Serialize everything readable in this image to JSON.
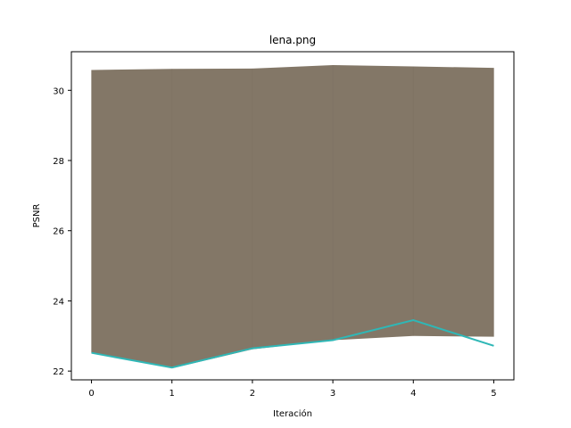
{
  "chart_data": {
    "type": "line",
    "title": "lena.png",
    "xlabel": "Iteración",
    "ylabel": "PSNR",
    "x": [
      0,
      1,
      2,
      3,
      4,
      5
    ],
    "xlim": [
      -0.25,
      5.25
    ],
    "ylim": [
      21.75,
      31.1
    ],
    "xticks": [
      "0",
      "1",
      "2",
      "3",
      "4",
      "5"
    ],
    "yticks": [
      "22",
      "24",
      "26",
      "28",
      "30"
    ],
    "ytick_values": [
      22,
      24,
      26,
      28,
      30
    ],
    "grid": false,
    "band": {
      "upper": [
        30.58,
        30.61,
        30.62,
        30.72,
        30.68,
        30.64
      ],
      "lower": [
        22.52,
        22.08,
        22.62,
        22.88,
        23.0,
        22.98
      ],
      "color": "#837767"
    },
    "series": [
      {
        "values": [
          22.52,
          22.1,
          22.65,
          22.88,
          23.45,
          22.72
        ],
        "color": "#2fb7b6"
      }
    ]
  }
}
